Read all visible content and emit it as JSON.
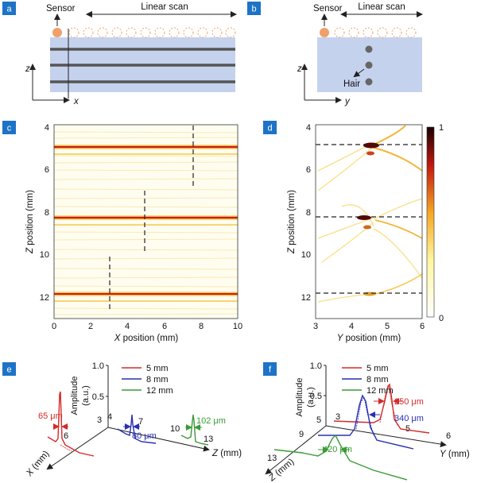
{
  "panels": {
    "a": {
      "label": "a",
      "sensor": "Sensor",
      "linear_scan": "Linear scan",
      "axis_z": "z",
      "axis_x": "x"
    },
    "b": {
      "label": "b",
      "sensor": "Sensor",
      "linear_scan": "Linear scan",
      "hair": "Hair",
      "axis_z": "z",
      "axis_y": "y"
    },
    "c": {
      "label": "c",
      "xlabel_var": "X",
      "xlabel_rest": " position (mm)",
      "ylabel_var": "Z",
      "ylabel_rest": " position (mm)",
      "xticks": [
        "0",
        "2",
        "4",
        "6",
        "8",
        "10"
      ],
      "yticks": [
        "4",
        "6",
        "8",
        "10",
        "12"
      ]
    },
    "d": {
      "label": "d",
      "xlabel_var": "Y",
      "xlabel_rest": " position (mm)",
      "ylabel_var": "Z",
      "ylabel_rest": " position (mm)",
      "xticks": [
        "3",
        "4",
        "5",
        "6"
      ],
      "yticks": [
        "4",
        "6",
        "8",
        "10",
        "12"
      ],
      "colorbar_ticks": [
        "1",
        "0"
      ]
    },
    "e": {
      "label": "e",
      "amp_label": "Amplitude",
      "amp_unit": "(a.u.)",
      "amp_ticks": [
        "1.0",
        "0.5"
      ],
      "x_axis": "X (mm)",
      "z_axis": "Z (mm)",
      "x_tick": "6",
      "z_ticks": [
        "3",
        "4",
        "7",
        "10",
        "13"
      ],
      "widths": [
        "65 μm",
        "80 μm",
        "102 μm"
      ]
    },
    "f": {
      "label": "f",
      "amp_label": "Amplitude",
      "amp_unit": "(a.u.)",
      "amp_ticks": [
        "1.0",
        "0.5"
      ],
      "y_axis": "Y (mm)",
      "z_axis": "Z (mm)",
      "y_ticks": [
        "3",
        "5",
        "6"
      ],
      "z_ticks": [
        "5",
        "9",
        "13"
      ],
      "widths": [
        "250 μm",
        "340 μm",
        "420 μm"
      ]
    }
  },
  "legend": [
    {
      "label": "5 mm",
      "color": "#d42a2a"
    },
    {
      "label": "8 mm",
      "color": "#2a2fb3"
    },
    {
      "label": "12 mm",
      "color": "#3a9a35"
    }
  ],
  "colors": {
    "panel_label_bg": "#1d73c6",
    "slab": "#c5d2ee",
    "sensor": "#f0a06a",
    "hair": "#666666"
  }
}
